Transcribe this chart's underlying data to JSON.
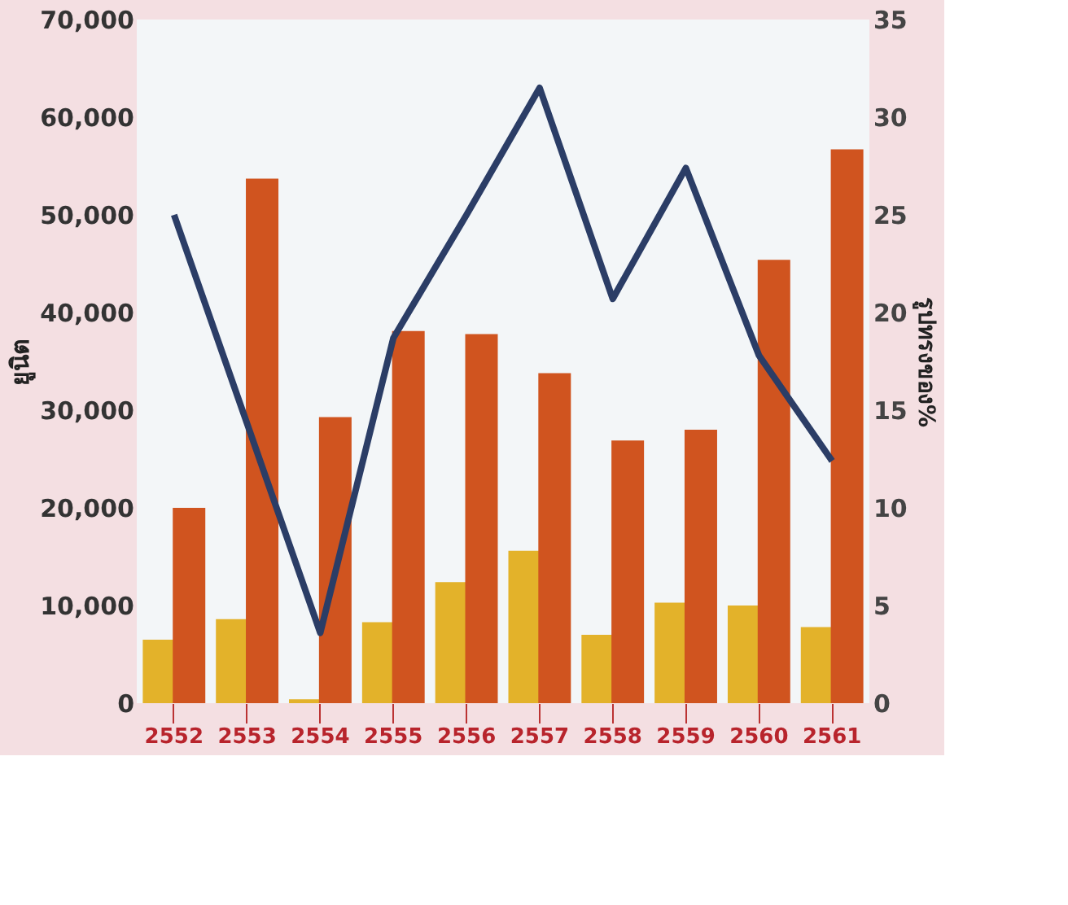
{
  "chart_data": {
    "type": "bar",
    "categories": [
      "2552",
      "2553",
      "2554",
      "2555",
      "2556",
      "2557",
      "2558",
      "2559",
      "2560",
      "2561"
    ],
    "ylabel": "ยูนิต",
    "y2label": "รูปทรงของ%",
    "ylim": [
      0,
      70000
    ],
    "yticks": [
      {
        "value": 0,
        "label": "0"
      },
      {
        "value": 10000,
        "label": "10,000"
      },
      {
        "value": 20000,
        "label": "20,000"
      },
      {
        "value": 30000,
        "label": "30,000"
      },
      {
        "value": 40000,
        "label": "40,000"
      },
      {
        "value": 50000,
        "label": "50,000"
      },
      {
        "value": 60000,
        "label": "60,000"
      },
      {
        "value": 70000,
        "label": "70,000"
      }
    ],
    "y2lim": [
      0,
      35
    ],
    "y2ticks": [
      0,
      5,
      10,
      15,
      20,
      25,
      30,
      35
    ],
    "grid": false,
    "legend": false,
    "series": [
      {
        "color": "#e3b22a",
        "values": [
          6500,
          8600,
          400,
          8300,
          12400,
          15600,
          7000,
          10300,
          10000,
          7800
        ]
      },
      {
        "color": "#d0541f",
        "values": [
          20000,
          53700,
          29300,
          38100,
          37800,
          33800,
          26900,
          28000,
          45400,
          56700
        ]
      },
      {
        "type": "line",
        "axis": "y2",
        "color": "#2b3d66",
        "values": [
          25.0,
          14.3,
          3.6,
          18.7,
          25.0,
          31.5,
          20.7,
          27.4,
          17.8,
          12.4
        ]
      }
    ]
  }
}
